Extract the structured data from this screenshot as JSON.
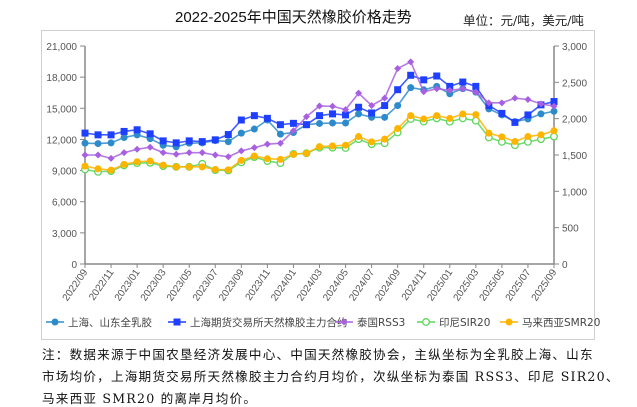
{
  "chart_data": {
    "type": "line",
    "title": "2022-2025年中国天然橡胶价格走势",
    "unit_label": "单位：元/吨，美元/吨",
    "categories": [
      "2022/09",
      "2022/10",
      "2022/11",
      "2022/12",
      "2023/01",
      "2023/02",
      "2023/03",
      "2023/04",
      "2023/05",
      "2023/06",
      "2023/07",
      "2023/08",
      "2023/09",
      "2023/10",
      "2023/11",
      "2023/12",
      "2024/01",
      "2024/02",
      "2024/03",
      "2024/04",
      "2024/05",
      "2024/06",
      "2024/07",
      "2024/08",
      "2024/09",
      "2024/10",
      "2024/11",
      "2024/12",
      "2025/01",
      "2025/02",
      "2025/03",
      "2025/04",
      "2025/05",
      "2025/06",
      "2025/07",
      "2025/08",
      "2025/09"
    ],
    "tick_labels": [
      "2022/09",
      "2022/11",
      "2023/01",
      "2023/03",
      "2023/05",
      "2023/07",
      "2023/09",
      "2023/11",
      "2024/01",
      "2024/03",
      "2024/05",
      "2024/07",
      "2024/09",
      "2024/11",
      "2025/01",
      "2025/03",
      "2025/05",
      "2025/07",
      "2025/09"
    ],
    "y_left": {
      "range": [
        0,
        21000
      ],
      "ticks": [
        "0",
        "3,000",
        "6,000",
        "9,000",
        "12,000",
        "15,000",
        "18,000",
        "21,000"
      ]
    },
    "y_right": {
      "range": [
        0,
        3000
      ],
      "ticks": [
        "0",
        "500",
        "1,000",
        "1,500",
        "2,000",
        "2,500",
        "3,000"
      ]
    },
    "grid": false,
    "legend_position": "bottom",
    "series": [
      {
        "name": "上海、山东全乳胶",
        "axis": "left",
        "color": "#2E8BCB",
        "marker": "circle",
        "values": [
          11640,
          11600,
          11670,
          12180,
          12440,
          12080,
          11440,
          11280,
          11640,
          11670,
          11890,
          11790,
          12610,
          13000,
          13870,
          12510,
          12670,
          13420,
          13540,
          13580,
          13580,
          14460,
          14130,
          14130,
          15260,
          16990,
          16780,
          17110,
          16400,
          16890,
          16560,
          14940,
          14360,
          13710,
          13970,
          14460,
          14710
        ]
      },
      {
        "name": "上海期货交易所天然橡胶主力合约",
        "axis": "left",
        "color": "#1F3FFF",
        "marker": "square",
        "values": [
          12610,
          12440,
          12440,
          12770,
          12930,
          12540,
          11860,
          11670,
          11860,
          11790,
          11960,
          12470,
          13870,
          14290,
          14030,
          13420,
          13550,
          13420,
          14290,
          14460,
          14360,
          15100,
          14550,
          15260,
          16790,
          18180,
          17740,
          18110,
          17110,
          17530,
          17110,
          15260,
          14510,
          13640,
          14360,
          15330,
          15650
        ]
      },
      {
        "name": "泰国RSS3",
        "axis": "right",
        "color": "#A860E0",
        "marker": "diamond",
        "values": [
          1500,
          1500,
          1454,
          1532,
          1579,
          1607,
          1532,
          1510,
          1532,
          1532,
          1500,
          1476,
          1556,
          1601,
          1649,
          1662,
          1833,
          2028,
          2175,
          2171,
          2125,
          2351,
          2181,
          2282,
          2690,
          2782,
          2370,
          2412,
          2389,
          2412,
          2365,
          2218,
          2218,
          2282,
          2264,
          2204,
          2171
        ]
      },
      {
        "name": "印尼SIR20",
        "axis": "right",
        "color": "#5CD65C",
        "marker": "open-circle",
        "values": [
          1301,
          1268,
          1278,
          1357,
          1389,
          1393,
          1347,
          1337,
          1337,
          1379,
          1292,
          1287,
          1399,
          1472,
          1417,
          1389,
          1514,
          1524,
          1601,
          1601,
          1597,
          1718,
          1649,
          1662,
          1810,
          1996,
          1960,
          2004,
          1958,
          2004,
          1972,
          1741,
          1681,
          1635,
          1681,
          1718,
          1754
        ]
      },
      {
        "name": "马来西亚SMR20",
        "axis": "right",
        "color": "#FFB400",
        "marker": "circle",
        "values": [
          1347,
          1310,
          1292,
          1371,
          1407,
          1417,
          1361,
          1337,
          1337,
          1337,
          1301,
          1296,
          1426,
          1486,
          1449,
          1440,
          1510,
          1524,
          1615,
          1625,
          1635,
          1754,
          1681,
          1718,
          1865,
          2042,
          1996,
          2042,
          2004,
          2065,
          2056,
          1801,
          1750,
          1685,
          1754,
          1778,
          1833
        ]
      }
    ]
  },
  "notes": [
    "注：数据来源于中国农垦经济发展中心、中国天然橡胶协会，主纵坐标为全乳胶上海、山东",
    "市场均价，上海期货交易所天然橡胶主力合约月均价，次纵坐标为泰国 RSS3、印尼 SIR20、",
    "马来西亚 SMR20 的离岸月均价。"
  ]
}
